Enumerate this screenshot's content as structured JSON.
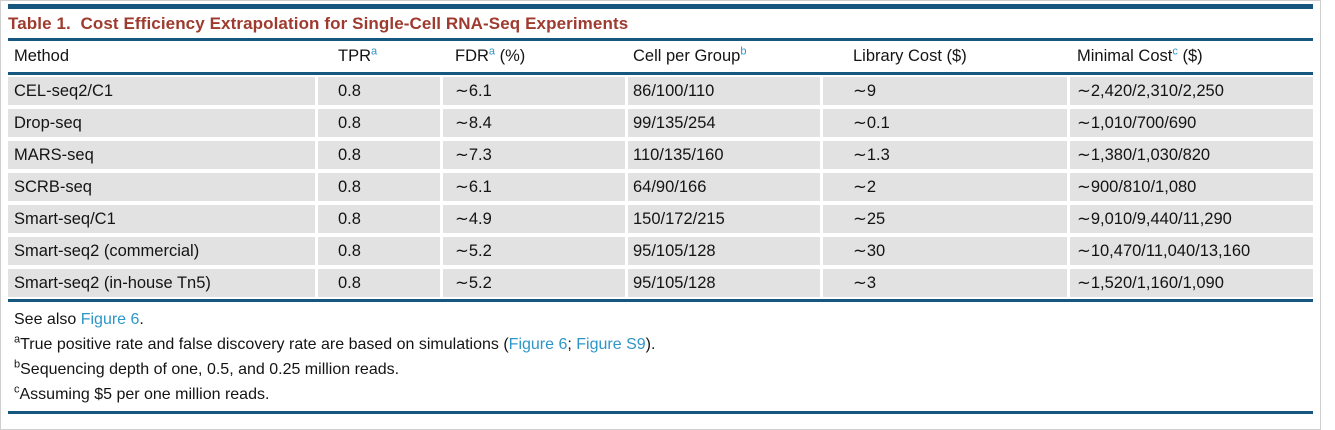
{
  "theme": {
    "title_color": "#9e3b2e",
    "rule_color": "#17567e",
    "link_color": "#2d96c8",
    "row_bg": "#e2e2e2"
  },
  "table": {
    "title": "Table 1.  Cost Efficiency Extrapolation for Single-Cell RNA-Seq Experiments",
    "columns": [
      {
        "label": "Method",
        "sup": "",
        "suffix": ""
      },
      {
        "label": "TPR",
        "sup": "a",
        "suffix": ""
      },
      {
        "label": "FDR",
        "sup": "a",
        "suffix": " (%)"
      },
      {
        "label": "Cell per Group",
        "sup": "b",
        "suffix": ""
      },
      {
        "label": "Library Cost ($)",
        "sup": "",
        "suffix": ""
      },
      {
        "label": "Minimal Cost",
        "sup": "c",
        "suffix": " ($)"
      }
    ],
    "rows": [
      [
        "CEL-seq2/C1",
        "0.8",
        "∼6.1",
        "86/100/110",
        "∼9",
        "∼2,420/2,310/2,250"
      ],
      [
        "Drop-seq",
        "0.8",
        "∼8.4",
        "99/135/254",
        "∼0.1",
        "∼1,010/700/690"
      ],
      [
        "MARS-seq",
        "0.8",
        "∼7.3",
        "110/135/160",
        "∼1.3",
        "∼1,380/1,030/820"
      ],
      [
        "SCRB-seq",
        "0.8",
        "∼6.1",
        "64/90/166",
        "∼2",
        "∼900/810/1,080"
      ],
      [
        "Smart-seq/C1",
        "0.8",
        "∼4.9",
        "150/172/215",
        "∼25",
        "∼9,010/9,440/11,290"
      ],
      [
        "Smart-seq2 (commercial)",
        "0.8",
        "∼5.2",
        "95/105/128",
        "∼30",
        "∼10,470/11,040/13,160"
      ],
      [
        "Smart-seq2 (in-house Tn5)",
        "0.8",
        "∼5.2",
        "95/105/128",
        "∼3",
        "∼1,520/1,160/1,090"
      ]
    ]
  },
  "footer": {
    "see_also": {
      "pre": "See also ",
      "link": "Figure 6",
      "post": "."
    },
    "note_a": {
      "sup": "a",
      "pre": "True positive rate and false discovery rate are based on simulations (",
      "link1": "Figure 6",
      "mid": "; ",
      "link2": "Figure S9",
      "post": ")."
    },
    "note_b": {
      "sup": "b",
      "text": "Sequencing depth of one, 0.5, and 0.25 million reads."
    },
    "note_c": {
      "sup": "c",
      "text": "Assuming $5 per one million reads."
    }
  }
}
